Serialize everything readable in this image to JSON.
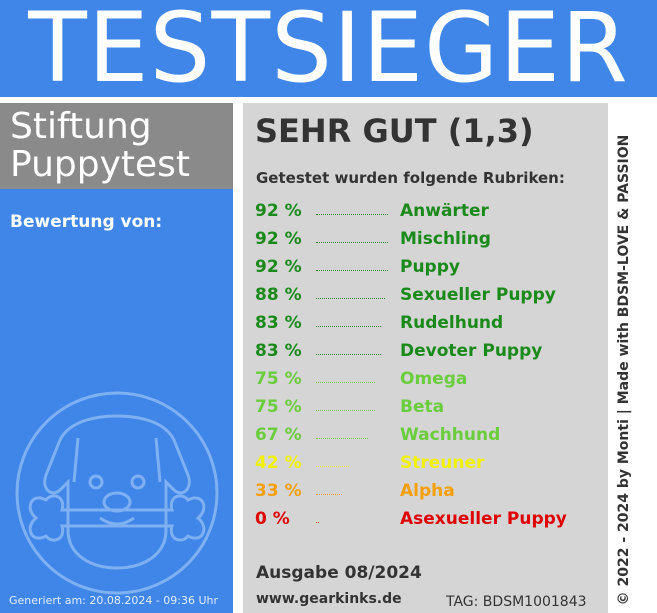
{
  "banner": {
    "title": "TESTSIEGER"
  },
  "sidebar": {
    "org_line1": "Stiftung",
    "org_line2": "Puppytest",
    "rating_by": "Bewertung von:",
    "generated": "Generiert am: 20.08.2024 - 09:36 Uhr",
    "mascot_icon": "puppy-with-bone-icon"
  },
  "main": {
    "grade": "SEHR GUT (1,3)",
    "categories_title": "Getestet wurden folgende Rubriken:",
    "rows": [
      {
        "percent_label": "92 %",
        "value": 92,
        "name": "Anwärter",
        "color": "#1a8a1a"
      },
      {
        "percent_label": "92 %",
        "value": 92,
        "name": "Mischling",
        "color": "#1a8a1a"
      },
      {
        "percent_label": "92 %",
        "value": 92,
        "name": "Puppy",
        "color": "#1a8a1a"
      },
      {
        "percent_label": "88 %",
        "value": 88,
        "name": "Sexueller Puppy",
        "color": "#1a8a1a"
      },
      {
        "percent_label": "83 %",
        "value": 83,
        "name": "Rudelhund",
        "color": "#1a8a1a"
      },
      {
        "percent_label": "83 %",
        "value": 83,
        "name": "Devoter Puppy",
        "color": "#1a8a1a"
      },
      {
        "percent_label": "75 %",
        "value": 75,
        "name": "Omega",
        "color": "#6acd3c"
      },
      {
        "percent_label": "75 %",
        "value": 75,
        "name": "Beta",
        "color": "#6acd3c"
      },
      {
        "percent_label": "67 %",
        "value": 67,
        "name": "Wachhund",
        "color": "#6acd3c"
      },
      {
        "percent_label": "42 %",
        "value": 42,
        "name": "Streuner",
        "color": "#f2f200"
      },
      {
        "percent_label": "33 %",
        "value": 33,
        "name": "Alpha",
        "color": "#f5a000"
      },
      {
        "percent_label": "0 %",
        "value": 0,
        "name": "Asexueller Puppy",
        "color": "#e00000"
      }
    ],
    "issue": "Ausgabe 08/2024",
    "website": "www.gearkinks.de",
    "tag": "TAG: BDSM1001843"
  },
  "side_text": "© 2022 - 2024 by Monti | Made with BDSM-LOVE & PASSION",
  "colors": {
    "blue": "#3f86e8",
    "gray_box": "#8a8a8a",
    "panel": "#d6d5d6"
  }
}
